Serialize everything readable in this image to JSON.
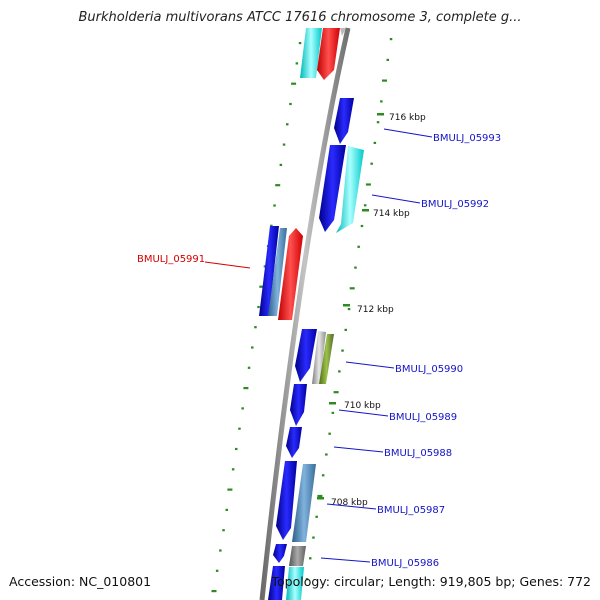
{
  "title": "Burkholderia multivorans ATCC 17616 chromosome 3, complete g...",
  "footer": {
    "accession": "Accession: NC_010801",
    "summary": "Topology: circular; Length: 919,805 bp; Genes: 772"
  },
  "colors": {
    "backbone": "#8a8a8a",
    "gene_blue": "#1a1adc",
    "gene_steel": "#4682b4",
    "gene_cyan": "#22e0e0",
    "gene_red": "#ee1111",
    "gene_gray": "#a8a8a8",
    "gene_olive": "#6b8e23",
    "tick_green": "#2e8b22",
    "label_blue": "#1414c8",
    "label_red": "#d40000"
  },
  "ticks": [
    {
      "label": "716 kbp"
    },
    {
      "label": "714 kbp"
    },
    {
      "label": "712 kbp"
    },
    {
      "label": "710 kbp"
    },
    {
      "label": "708 kbp"
    }
  ],
  "gene_labels": [
    {
      "name": "BMULJ_05993",
      "color": "blue"
    },
    {
      "name": "BMULJ_05992",
      "color": "blue"
    },
    {
      "name": "BMULJ_05991",
      "color": "red"
    },
    {
      "name": "BMULJ_05990",
      "color": "blue"
    },
    {
      "name": "BMULJ_05989",
      "color": "blue"
    },
    {
      "name": "BMULJ_05988",
      "color": "blue"
    },
    {
      "name": "BMULJ_05987",
      "color": "blue"
    },
    {
      "name": "BMULJ_05986",
      "color": "blue"
    }
  ]
}
